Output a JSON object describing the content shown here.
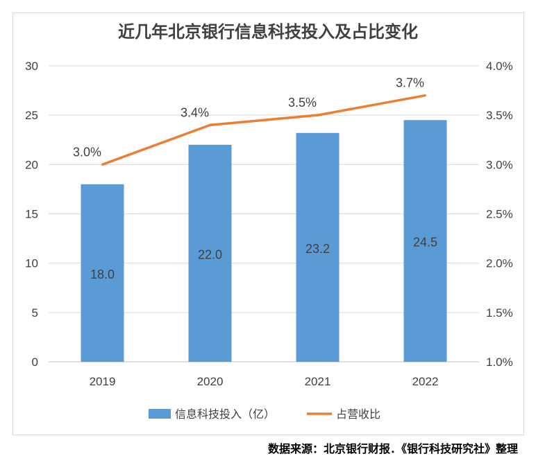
{
  "title": "近几年北京银行信息科技投入及占比变化",
  "source": "数据来源：北京银行财报．《银行科技研究社》整理",
  "chart_data": {
    "type": "bar+line",
    "categories": [
      "2019",
      "2020",
      "2021",
      "2022"
    ],
    "series": [
      {
        "name": "信息科技投入（亿）",
        "type": "bar",
        "axis": "left",
        "values": [
          18.0,
          22.0,
          23.2,
          24.5
        ],
        "labels": [
          "18.0",
          "22.0",
          "23.2",
          "24.5"
        ],
        "color": "#5b9bd5"
      },
      {
        "name": "占营收比",
        "type": "line",
        "axis": "right",
        "values": [
          3.0,
          3.4,
          3.5,
          3.7
        ],
        "labels": [
          "3.0%",
          "3.4%",
          "3.5%",
          "3.7%"
        ],
        "color": "#ed7d31"
      }
    ],
    "y_left": {
      "range": [
        0,
        30
      ],
      "ticks": [
        "0",
        "5",
        "10",
        "15",
        "20",
        "25",
        "30"
      ]
    },
    "y_right": {
      "range": [
        1.0,
        4.0
      ],
      "ticks": [
        "1.0%",
        "1.5%",
        "2.0%",
        "2.5%",
        "3.0%",
        "3.5%",
        "4.0%"
      ]
    },
    "grid": true,
    "legend_position": "bottom"
  }
}
